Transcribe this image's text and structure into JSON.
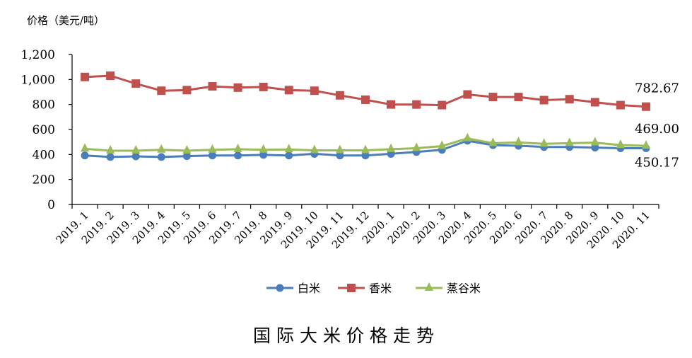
{
  "chart_data": {
    "type": "line",
    "title": "国际大米价格走势",
    "ylabel": "价格（美元/吨）",
    "xlabel": "",
    "ylim": [
      0,
      1200
    ],
    "yticks": [
      0,
      200,
      400,
      600,
      800,
      1000,
      1200
    ],
    "ytick_labels": [
      "0",
      "200",
      "400",
      "600",
      "800",
      "1,000",
      "1,200"
    ],
    "grid": false,
    "legend_position": "bottom",
    "categories": [
      "2019.1",
      "2019.2",
      "2019.3",
      "2019.4",
      "2019.5",
      "2019.6",
      "2019.7",
      "2019.8",
      "2019.9",
      "2019.10",
      "2019.11",
      "2019.12",
      "2020.1",
      "2020.2",
      "2020.3",
      "2020.4",
      "2020.5",
      "2020.6",
      "2020.7",
      "2020.8",
      "2020.9",
      "2020.10",
      "2020.11"
    ],
    "series": [
      {
        "name": "白米",
        "color": "#4a7ebb",
        "marker": "circle",
        "values": [
          392,
          380,
          385,
          380,
          387,
          392,
          392,
          397,
          392,
          405,
          392,
          392,
          405,
          420,
          437,
          510,
          475,
          470,
          460,
          460,
          455,
          450,
          450.17
        ]
      },
      {
        "name": "香米",
        "color": "#c0504d",
        "marker": "square",
        "values": [
          1020,
          1030,
          967,
          910,
          915,
          945,
          935,
          940,
          915,
          910,
          873,
          838,
          800,
          800,
          795,
          880,
          860,
          860,
          835,
          842,
          818,
          795,
          782.67
        ]
      },
      {
        "name": "蒸谷米",
        "color": "#9bbb59",
        "marker": "triangle",
        "values": [
          445,
          430,
          430,
          437,
          430,
          437,
          442,
          437,
          440,
          433,
          433,
          433,
          442,
          450,
          467,
          528,
          490,
          497,
          485,
          490,
          495,
          475,
          469.0
        ]
      }
    ],
    "annotations": [
      {
        "series": "香米",
        "category": "2020.11",
        "text": "782.67"
      },
      {
        "series": "蒸谷米",
        "category": "2020.11",
        "text": "469.00"
      },
      {
        "series": "白米",
        "category": "2020.11",
        "text": "450.17"
      }
    ]
  },
  "labels": {
    "y_axis_title": "价格（美元/吨）",
    "caption": "国际大米价格走势",
    "legend": [
      "白米",
      "香米",
      "蒸谷米"
    ]
  }
}
